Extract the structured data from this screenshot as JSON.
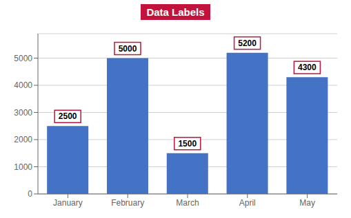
{
  "chart_data": {
    "type": "bar",
    "title": "Data Labels",
    "categories": [
      "January",
      "February",
      "March",
      "April",
      "May"
    ],
    "values": [
      2500,
      5000,
      1500,
      5200,
      4300
    ],
    "color": "#4472C4",
    "ylim": [
      0,
      5900
    ],
    "yticks": [
      0,
      1000,
      2000,
      3000,
      4000,
      5000
    ],
    "grid": true,
    "data_labels": true
  }
}
